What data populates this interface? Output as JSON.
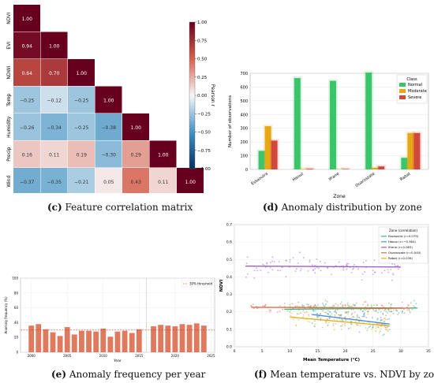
{
  "captions": {
    "c": {
      "letter": "(c)",
      "text": "Feature correlation matrix"
    },
    "d": {
      "letter": "(d)",
      "text": "Anomaly distribution by zone"
    },
    "e": {
      "letter": "(e)",
      "text": "Anomaly frequency per year"
    },
    "f": {
      "letter": "(f)",
      "text": "Mean temperature vs. NDVI by zone"
    }
  },
  "chart_data": [
    {
      "id": "c",
      "type": "heatmap",
      "labels": [
        "NDVI",
        "EVI",
        "NDWI",
        "Temp",
        "Humidity",
        "Precip",
        "Wind"
      ],
      "matrix": [
        [
          1.0
        ],
        [
          0.94,
          1.0
        ],
        [
          0.64,
          0.7,
          1.0
        ],
        [
          -0.25,
          -0.12,
          -0.25,
          1.0
        ],
        [
          -0.26,
          -0.34,
          -0.25,
          -0.38,
          1.0
        ],
        [
          0.16,
          0.11,
          0.19,
          -0.3,
          0.29,
          1.0
        ],
        [
          -0.37,
          -0.35,
          -0.21,
          0.05,
          0.43,
          0.11,
          1.0
        ]
      ],
      "colorbar": {
        "label": "Pearson r",
        "min": -1,
        "max": 1,
        "ticks": [
          "1.00",
          "0.75",
          "0.50",
          "0.25",
          "0.00",
          "−0.25",
          "−0.50",
          "−0.75",
          "−1.00"
        ]
      },
      "colors": {
        "neg": "#053061",
        "mid": "#f7f7f7",
        "pos": "#67001f"
      }
    },
    {
      "id": "d",
      "type": "bar",
      "categories": [
        "Essaouira",
        "Haouz",
        "Ifrane",
        "Ouarzazate",
        "Rabat"
      ],
      "series": [
        {
          "name": "Normal",
          "color": "#3cc46a",
          "values": [
            135,
            665,
            645,
            705,
            85
          ]
        },
        {
          "name": "Moderate",
          "color": "#e6a817",
          "values": [
            315,
            3,
            0,
            12,
            265
          ]
        },
        {
          "name": "Severe",
          "color": "#d1493c",
          "values": [
            210,
            5,
            3,
            22,
            265
          ]
        }
      ],
      "xlabel": "Zone",
      "ylabel": "Number of observations",
      "ylim": [
        0,
        700
      ],
      "yticks": [
        0,
        100,
        200,
        300,
        400,
        500,
        600,
        700
      ],
      "legend_title": "Class",
      "legend_position": "top-right"
    },
    {
      "id": "e",
      "type": "bar",
      "x": [
        2000,
        2001,
        2002,
        2003,
        2004,
        2005,
        2006,
        2007,
        2008,
        2009,
        2010,
        2011,
        2012,
        2013,
        2014,
        2015,
        2017,
        2018,
        2019,
        2020,
        2021,
        2022,
        2023,
        2024
      ],
      "values": [
        36,
        38,
        31,
        27,
        22,
        34,
        24,
        29,
        29,
        28,
        32,
        21,
        28,
        29,
        26,
        31,
        35,
        37,
        36,
        35,
        38,
        37,
        39,
        36
      ],
      "threshold": {
        "value": 30,
        "label": "30% threshold"
      },
      "color": "#e07a5f",
      "xlabel": "Year",
      "ylabel": "Anomaly frequency (%)",
      "ylim": [
        0,
        100
      ],
      "yticks": [
        0,
        20,
        40,
        60,
        80,
        100
      ],
      "xticks": [
        2000,
        2005,
        2010,
        2015,
        2020,
        2025
      ]
    },
    {
      "id": "f",
      "type": "scatter",
      "xlabel": "Mean Temperature (°C)",
      "ylabel": "NDVI",
      "xlim": [
        0,
        35
      ],
      "ylim": [
        0.0,
        0.7
      ],
      "xticks": [
        0,
        5,
        10,
        15,
        20,
        25,
        30,
        35
      ],
      "yticks": [
        "0.0",
        "0.1",
        "0.2",
        "0.3",
        "0.4",
        "0.5",
        "0.6",
        "0.7"
      ],
      "legend_title": "Zone (correlation)",
      "legend_position": "top-right",
      "series": [
        {
          "name": "Essaouira (r=0.079)",
          "color": "#3cb878",
          "xrange": [
            9,
            33
          ],
          "ycenter": 0.22,
          "yspread": 0.03,
          "fit": [
            [
              9,
              0.215
            ],
            [
              33,
              0.222
            ]
          ]
        },
        {
          "name": "Haouz (r=−0.384)",
          "color": "#4f8fd6",
          "xrange": [
            14,
            28
          ],
          "ycenter": 0.15,
          "yspread": 0.05,
          "fit": [
            [
              14,
              0.185
            ],
            [
              28,
              0.13
            ]
          ]
        },
        {
          "name": "Ifrane (r=0.063)",
          "color": "#a05ec6",
          "xrange": [
            2,
            30
          ],
          "ycenter": 0.47,
          "yspread": 0.05,
          "fit": [
            [
              2,
              0.462
            ],
            [
              30,
              0.457
            ]
          ]
        },
        {
          "name": "Ouarzazate (r=0.040)",
          "color": "#e06a4e",
          "xrange": [
            3,
            32
          ],
          "ycenter": 0.225,
          "yspread": 0.03,
          "fit": [
            [
              3,
              0.226
            ],
            [
              32,
              0.222
            ]
          ]
        },
        {
          "name": "Rabat (r=0.039)",
          "color": "#e3b020",
          "xrange": [
            10,
            28
          ],
          "ycenter": 0.13,
          "yspread": 0.05,
          "fit": [
            [
              10,
              0.17
            ],
            [
              28,
              0.12
            ]
          ]
        }
      ]
    }
  ]
}
